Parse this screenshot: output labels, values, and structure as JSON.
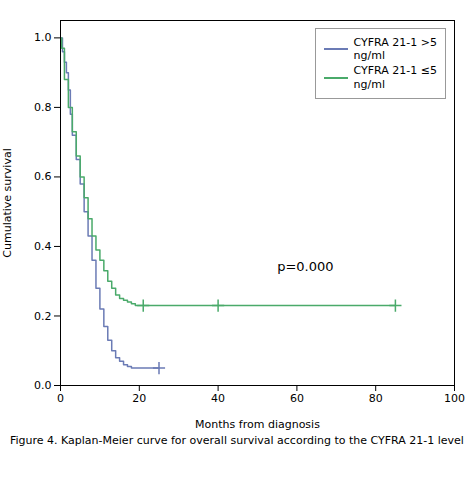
{
  "chart_data": {
    "type": "step",
    "xlabel": "Months from diagnosis",
    "ylabel": "Cumulative survival",
    "caption": "Figure 4. Kaplan-Meier curve for overall survival according to the CYFRA 21-1 level",
    "xlim": [
      0,
      100
    ],
    "ylim": [
      0.0,
      1.05
    ],
    "xticks": [
      0,
      20,
      40,
      60,
      80,
      100
    ],
    "yticks": [
      {
        "value": 0.0,
        "label": "0.0"
      },
      0.2,
      0.4,
      0.6,
      0.8,
      {
        "value": 1.0,
        "label": "1.0"
      }
    ],
    "legend": "upper right",
    "annotations": [
      {
        "text": "p=0.000",
        "x": 55,
        "y": 0.33
      }
    ],
    "series": [
      {
        "name": "CYFRA 21-1  >5\nng/ml",
        "color": "#6b7bb5",
        "marker": "plus",
        "x": [
          0,
          0.5,
          0.5,
          1,
          1,
          1.5,
          1.5,
          2,
          2,
          2.5,
          2.5,
          3,
          3,
          4,
          4,
          5,
          5,
          6,
          6,
          7,
          7,
          8,
          8,
          9,
          9,
          10,
          10,
          11,
          11,
          12,
          12,
          13,
          13,
          14,
          14,
          15,
          15,
          16,
          16,
          17,
          17,
          18,
          18,
          19,
          19,
          20,
          20,
          21,
          21,
          22,
          22,
          25,
          25
        ],
        "values": [
          1.0,
          1.0,
          0.96,
          0.96,
          0.93,
          0.93,
          0.9,
          0.9,
          0.85,
          0.85,
          0.78,
          0.78,
          0.72,
          0.72,
          0.65,
          0.65,
          0.58,
          0.58,
          0.5,
          0.5,
          0.43,
          0.43,
          0.36,
          0.36,
          0.28,
          0.28,
          0.22,
          0.22,
          0.17,
          0.17,
          0.13,
          0.13,
          0.1,
          0.1,
          0.08,
          0.08,
          0.07,
          0.07,
          0.06,
          0.06,
          0.055,
          0.055,
          0.05,
          0.05,
          0.05,
          0.05,
          0.05,
          0.05,
          0.05,
          0.05,
          0.05,
          0.05,
          0.05
        ],
        "censor_x": [
          25
        ],
        "censor_y": [
          0.05
        ]
      },
      {
        "name": "CYFRA 21-1  ≤5\nng/ml",
        "color": "#4aaa6a",
        "marker": "plus",
        "x": [
          0,
          0.3,
          0.3,
          1,
          1,
          2,
          2,
          3,
          3,
          4,
          4,
          5,
          5,
          6,
          6,
          7,
          7,
          8,
          8,
          9,
          9,
          10,
          10,
          11,
          11,
          12,
          12,
          13,
          13,
          14,
          14,
          15,
          15,
          16,
          16,
          17,
          17,
          18,
          18,
          19,
          19,
          20,
          20,
          21,
          21,
          22,
          22,
          85
        ],
        "values": [
          1.0,
          1.0,
          0.97,
          0.97,
          0.88,
          0.88,
          0.8,
          0.8,
          0.73,
          0.73,
          0.66,
          0.66,
          0.6,
          0.6,
          0.54,
          0.54,
          0.48,
          0.48,
          0.43,
          0.43,
          0.39,
          0.39,
          0.36,
          0.36,
          0.33,
          0.33,
          0.3,
          0.3,
          0.28,
          0.28,
          0.26,
          0.26,
          0.25,
          0.25,
          0.245,
          0.245,
          0.24,
          0.24,
          0.235,
          0.235,
          0.23,
          0.23,
          0.23,
          0.23,
          0.23,
          0.23,
          0.23,
          0.23
        ],
        "censor_x": [
          21,
          40,
          85
        ],
        "censor_y": [
          0.23,
          0.23,
          0.23
        ]
      }
    ]
  }
}
